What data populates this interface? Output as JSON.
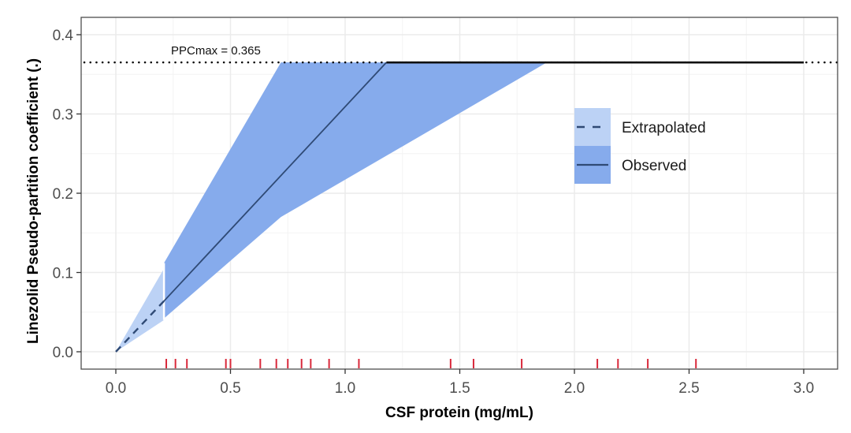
{
  "chart_data": {
    "type": "line",
    "title": "",
    "xlabel": "CSF protein (mg/mL)",
    "ylabel": "Linezolid Pseudo-partition coefficient (.)",
    "xlim": [
      -0.15,
      3.08
    ],
    "ylim": [
      -0.021,
      0.422
    ],
    "x_ticks": [
      0.0,
      0.5,
      1.0,
      1.5,
      2.0,
      2.5,
      3.0
    ],
    "x_tick_labels": [
      "0.0",
      "0.5",
      "1.0",
      "1.5",
      "2.0",
      "2.5",
      "3.0"
    ],
    "y_ticks": [
      0.0,
      0.1,
      0.2,
      0.3,
      0.4
    ],
    "y_tick_labels": [
      "0.0",
      "0.1",
      "0.2",
      "0.3",
      "0.4"
    ],
    "grid": true,
    "ppcmax": 0.365,
    "annotation": "PPCmax = 0.365",
    "extrapolation_limit_x": 0.21,
    "series": [
      {
        "name": "Extrapolated",
        "style": "dashed",
        "line": {
          "x": [
            0.0,
            0.21
          ],
          "y": [
            0.0,
            0.064
          ]
        },
        "band": {
          "x": [
            0.0,
            0.21
          ],
          "upper": [
            0.0,
            0.105
          ],
          "lower": [
            0.0,
            0.04
          ]
        }
      },
      {
        "name": "Observed",
        "style": "solid",
        "line": {
          "x": [
            0.21,
            1.18,
            3.0
          ],
          "y": [
            0.064,
            0.365,
            0.365
          ]
        },
        "band": {
          "x": [
            0.21,
            0.72,
            1.88
          ],
          "upper": [
            0.112,
            0.365,
            0.365
          ],
          "lower": [
            0.042,
            0.17,
            0.365
          ]
        }
      }
    ],
    "ppcmax_line": {
      "y": 0.365,
      "style": "dotted"
    },
    "rug": [
      0.22,
      0.26,
      0.31,
      0.48,
      0.5,
      0.63,
      0.7,
      0.75,
      0.81,
      0.85,
      0.93,
      1.06,
      1.46,
      1.56,
      1.77,
      2.1,
      2.19,
      2.32,
      2.53
    ],
    "legend": {
      "position": "right-middle",
      "entries": [
        {
          "label": "Extrapolated",
          "line": "dashed",
          "fill": "#bcd2f5"
        },
        {
          "label": "Observed",
          "line": "solid",
          "fill": "#86abec"
        }
      ]
    },
    "colors": {
      "band_extrapolated": "#bcd2f5",
      "band_observed": "#86abec",
      "line": "#2f4a75",
      "rug": "#d9283a",
      "ppcmax_line": "#000000",
      "grid": "#ebebeb",
      "panel_border": "#4d4d4d"
    }
  }
}
